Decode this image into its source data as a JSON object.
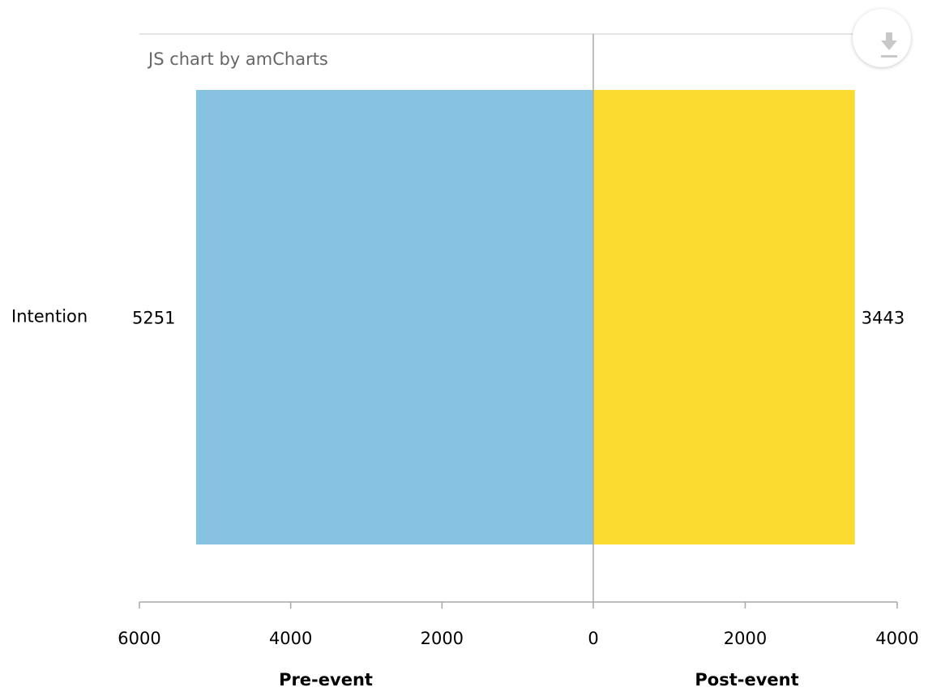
{
  "credit": "JS chart by amCharts",
  "export": {
    "icon": "download-icon"
  },
  "colors": {
    "pre": "#86c3e2",
    "post": "#fcdb30",
    "axis": "#a9a9a9",
    "grid": "#cccccc",
    "credit_text": "#666666",
    "text": "#000000"
  },
  "chart_data": {
    "type": "bar",
    "orientation": "horizontal",
    "layout": "diverging",
    "categories": [
      "Intention"
    ],
    "series": [
      {
        "name": "Pre-event",
        "values": [
          5251
        ],
        "direction": "left",
        "xlim": [
          0,
          6000
        ],
        "ticks": [
          6000,
          4000,
          2000,
          0
        ],
        "xlabel": "Pre-event"
      },
      {
        "name": "Post-event",
        "values": [
          3443
        ],
        "direction": "right",
        "xlim": [
          0,
          4000
        ],
        "ticks": [
          0,
          2000,
          4000
        ],
        "xlabel": "Post-event"
      }
    ],
    "grid": false,
    "legend": "none"
  }
}
